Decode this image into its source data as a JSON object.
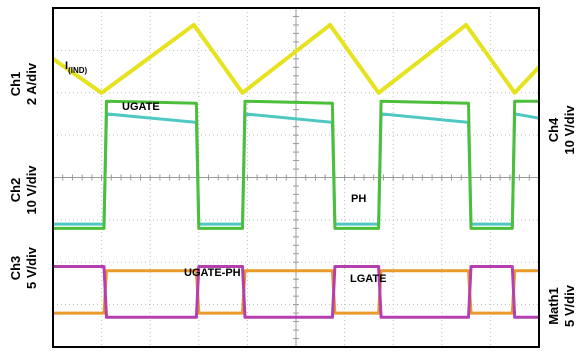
{
  "chart_data": {
    "type": "line",
    "title": "",
    "xlabel": "",
    "ylabel": "",
    "grid": true,
    "grid_divisions": {
      "x": 10,
      "y": 8
    },
    "channel_labels": {
      "ch1": {
        "name": "Ch1",
        "scale": "2 A/div",
        "side": "left"
      },
      "ch2": {
        "name": "Ch2",
        "scale": "10 V/div",
        "side": "left"
      },
      "ch3": {
        "name": "Ch3",
        "scale": "5 V/div",
        "side": "left"
      },
      "ch4": {
        "name": "Ch4",
        "scale": "10 V/div",
        "side": "right"
      },
      "math1": {
        "name": "Math1",
        "scale": "5 V/div",
        "side": "right"
      }
    },
    "series": [
      {
        "name": "I(IND)",
        "label_main": "I",
        "label_sub": "(IND)",
        "color": "#e6e31e",
        "x": [
          0.0,
          1.0,
          2.9,
          3.9,
          5.7,
          6.7,
          8.5,
          9.5,
          10.0
        ],
        "y": [
          6.8,
          6.0,
          7.6,
          6.0,
          7.6,
          6.0,
          7.6,
          6.0,
          6.6
        ]
      },
      {
        "name": "UGATE",
        "label_main": "UGATE",
        "color": "#4cbf3a",
        "x": [
          0.0,
          1.05,
          1.1,
          2.95,
          3.0,
          3.9,
          3.95,
          5.75,
          5.8,
          6.7,
          6.75,
          8.55,
          8.6,
          9.45,
          9.5,
          10.0
        ],
        "y": [
          2.8,
          2.8,
          5.8,
          5.75,
          2.8,
          2.8,
          5.8,
          5.75,
          2.8,
          2.8,
          5.8,
          5.75,
          2.8,
          2.8,
          5.8,
          5.8
        ]
      },
      {
        "name": "PH",
        "label_main": "PH",
        "color": "#4fc8c4",
        "x": [
          0.0,
          1.05,
          1.1,
          2.95,
          3.0,
          3.9,
          3.95,
          5.75,
          5.8,
          6.7,
          6.75,
          8.55,
          8.6,
          9.45,
          9.5,
          10.0
        ],
        "y": [
          2.9,
          2.9,
          5.5,
          5.3,
          2.9,
          2.9,
          5.5,
          5.3,
          2.9,
          2.9,
          5.5,
          5.3,
          2.9,
          2.9,
          5.5,
          5.4
        ]
      },
      {
        "name": "LGATE",
        "label_main": "LGATE",
        "color": "#b63fb0",
        "x": [
          0.0,
          1.05,
          1.1,
          2.95,
          3.0,
          3.9,
          3.95,
          5.75,
          5.8,
          6.7,
          6.75,
          8.55,
          8.6,
          9.45,
          9.5,
          10.0
        ],
        "y": [
          1.9,
          1.9,
          0.7,
          0.7,
          1.9,
          1.9,
          0.7,
          0.7,
          1.9,
          1.9,
          0.7,
          0.7,
          1.9,
          1.9,
          0.7,
          0.7
        ]
      },
      {
        "name": "UGATE-PH",
        "label_main": "UGATE-PH",
        "color": "#e89a2a",
        "x": [
          0.0,
          1.05,
          1.1,
          2.95,
          3.0,
          3.9,
          3.95,
          5.75,
          5.8,
          6.7,
          6.75,
          8.55,
          8.6,
          9.45,
          9.5,
          10.0
        ],
        "y": [
          0.8,
          0.8,
          1.8,
          1.8,
          0.8,
          0.8,
          1.8,
          1.8,
          0.8,
          0.8,
          1.8,
          1.8,
          0.8,
          0.8,
          1.8,
          1.8
        ]
      }
    ],
    "xlim": [
      0,
      10
    ],
    "ylim": [
      0,
      8
    ]
  }
}
